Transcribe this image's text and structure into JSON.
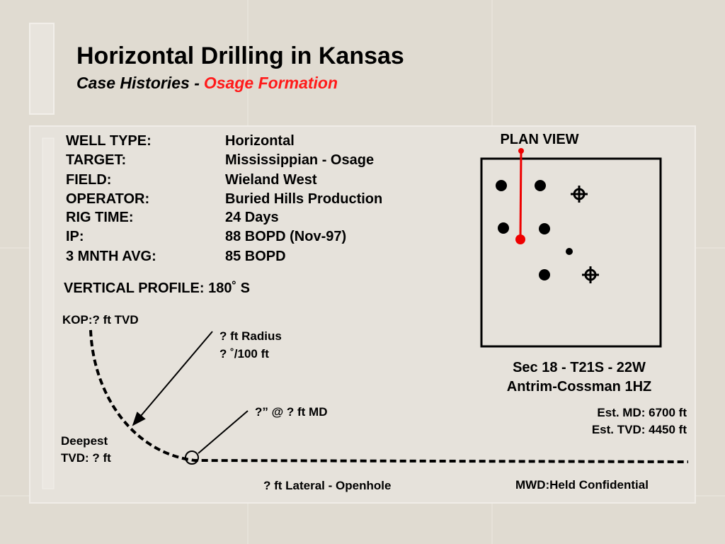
{
  "header": {
    "title": "Horizontal Drilling in Kansas",
    "subtitle": "Case Histories -",
    "subtitle_highlight": "Osage Formation"
  },
  "well_info": [
    {
      "label": "WELL TYPE:",
      "value": "Horizontal"
    },
    {
      "label": "TARGET:",
      "value": "Mississippian - Osage"
    },
    {
      "label": "FIELD:",
      "value": "Wieland West"
    },
    {
      "label": "OPERATOR:",
      "value": "Buried Hills Production"
    },
    {
      "label": "RIG TIME:",
      "value": "24 Days"
    },
    {
      "label": "IP:",
      "value": "88 BOPD (Nov-97)"
    },
    {
      "label": "3 MNTH AVG:",
      "value": "85 BOPD"
    }
  ],
  "plan_view": {
    "title": "PLAN VIEW",
    "section": "Sec 18 - T21S - 22W",
    "well_name": "Antrim-Cossman 1HZ",
    "est_md": "Est.  MD: 6700 ft",
    "est_tvd": "Est. TVD: 4450 ft"
  },
  "profile": {
    "title": "VERTICAL PROFILE: 180˚ S",
    "kop": "KOP:? ft TVD",
    "radius": "? ft Radius",
    "build_rate": "? ˚/100 ft",
    "casing": "?” @ ? ft MD",
    "deepest": "Deepest",
    "deepest_tvd": "TVD: ? ft",
    "lateral": "? ft Lateral - Openhole",
    "mwd": "MWD:Held Confidential"
  }
}
